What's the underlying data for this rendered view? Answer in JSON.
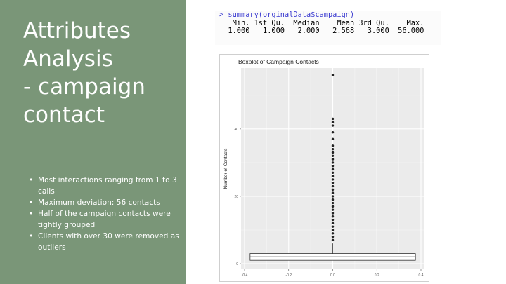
{
  "slide": {
    "title_lines": [
      "Attributes",
      "Analysis",
      "- campaign",
      "contact"
    ],
    "bullets": [
      "Most interactions ranging from 1 to 3 calls",
      "Maximum deviation: 56 contacts",
      "Half of the campaign contacts were tightly grouped",
      "Clients with over 30 were removed as outliers"
    ],
    "colors": {
      "panel": "#7a9678",
      "text": "#ffffff"
    }
  },
  "console": {
    "command": "> summary(orginalData$campaign)",
    "header": "   Min. 1st Qu.  Median    Mean 3rd Qu.    Max. ",
    "values": "  1.000   1.000   2.000   2.568   3.000  56.000 "
  },
  "chart_data": {
    "type": "boxplot",
    "title": "Boxplot of Campaign Contacts",
    "ylabel": "Number of Contacts",
    "xlabel": "",
    "xlim": [
      -0.4,
      0.4
    ],
    "ylim": [
      0,
      56
    ],
    "x_ticks": [
      "-0.4",
      "-0.2",
      "0.0",
      "0.2",
      "0.4"
    ],
    "x_tick_values": [
      -0.4,
      -0.2,
      0.0,
      0.2,
      0.4
    ],
    "y_ticks": [
      "0",
      "20",
      "40"
    ],
    "y_tick_values": [
      0,
      20,
      40
    ],
    "box": {
      "min": 1,
      "q1": 1,
      "median": 2,
      "q3": 3,
      "whisker_high": 6,
      "x_left": -0.375,
      "x_right": 0.375
    },
    "outliers": [
      7,
      8,
      9,
      10,
      11,
      12,
      13,
      14,
      15,
      16,
      17,
      18,
      19,
      20,
      21,
      22,
      23,
      24,
      25,
      26,
      27,
      28,
      29,
      30,
      31,
      32,
      33,
      34,
      35,
      37,
      39,
      41,
      42,
      43,
      56
    ],
    "grid": true,
    "background": "#ebebeb",
    "legend": "none"
  }
}
